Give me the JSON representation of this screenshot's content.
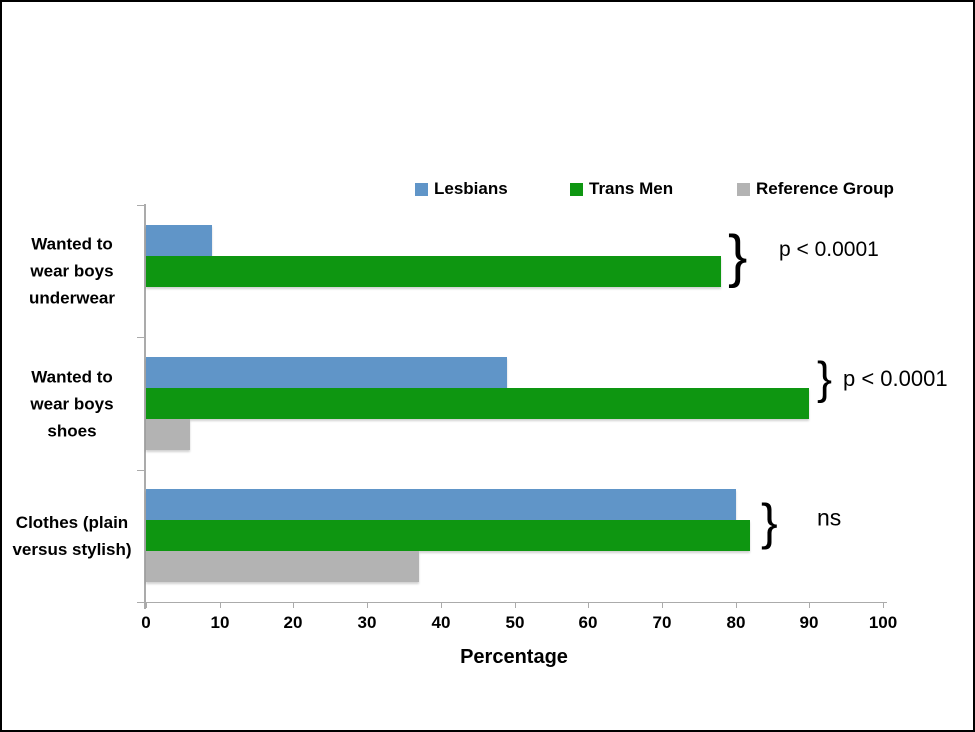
{
  "chart_data": {
    "type": "bar",
    "orientation": "horizontal",
    "title": "",
    "xlabel": "Percentage",
    "xlim": [
      0,
      100
    ],
    "x_ticks": [
      0,
      10,
      20,
      30,
      40,
      50,
      60,
      70,
      80,
      90,
      100
    ],
    "grid": false,
    "legend_position": "top",
    "axis_color": "#ABABAB",
    "categories": [
      "Wanted to\nwear boys\nunderwear",
      "Wanted to\nwear boys\nshoes",
      "Clothes (plain\nversus stylish)"
    ],
    "series": [
      {
        "name": "Lesbians",
        "color": "#6095C8",
        "values": [
          9,
          49,
          80
        ]
      },
      {
        "name": "Trans Men",
        "color": "#0E9611",
        "values": [
          78,
          90,
          82
        ]
      },
      {
        "name": "Reference Group",
        "color": "#B3B3B3",
        "values": [
          0,
          6,
          37
        ]
      }
    ],
    "annotations": [
      {
        "brace": "}",
        "label": "p < 0.0001"
      },
      {
        "brace": "}",
        "label": "p < 0.0001"
      },
      {
        "brace": "}",
        "label": "ns"
      }
    ]
  }
}
